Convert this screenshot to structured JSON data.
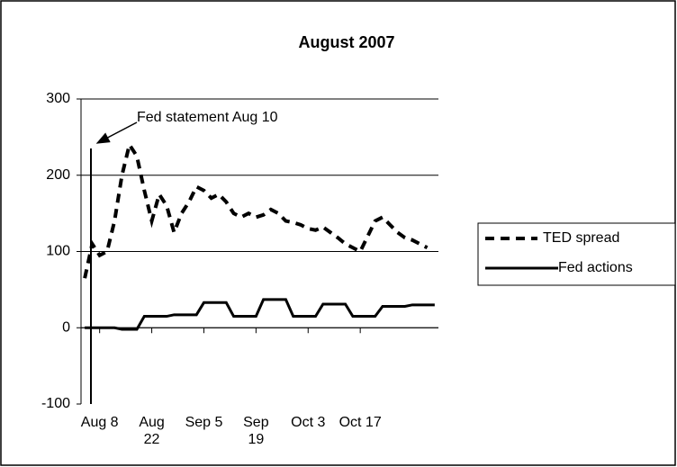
{
  "chart_data": {
    "type": "line",
    "title": "August 2007",
    "categories": [
      null,
      null,
      "Aug 8",
      null,
      null,
      null,
      null,
      null,
      null,
      "Aug 22",
      null,
      null,
      null,
      null,
      null,
      null,
      "Sep 5",
      null,
      null,
      null,
      null,
      null,
      null,
      "Sep 19",
      null,
      null,
      null,
      null,
      null,
      null,
      "Oct 3",
      null,
      null,
      null,
      null,
      null,
      null,
      "Oct 17",
      null,
      null,
      null,
      null,
      null,
      null,
      null,
      null,
      null,
      null
    ],
    "series": [
      {
        "name": "TED spread",
        "color": "#000000",
        "dashed": true,
        "values": [
          65,
          110,
          95,
          100,
          140,
          200,
          240,
          225,
          180,
          140,
          175,
          160,
          125,
          150,
          165,
          185,
          180,
          170,
          175,
          165,
          150,
          145,
          150,
          145,
          148,
          155,
          150,
          140,
          138,
          135,
          130,
          128,
          132,
          125,
          118,
          110,
          105,
          100,
          120,
          140,
          145,
          135,
          125,
          118,
          115,
          110,
          105,
          null
        ]
      },
      {
        "name": "Fed actions",
        "color": "#000000",
        "dashed": false,
        "values": [
          0,
          0,
          0,
          0,
          0,
          -2,
          -2,
          -2,
          15,
          15,
          15,
          15,
          17,
          17,
          17,
          17,
          33,
          33,
          33,
          33,
          15,
          15,
          15,
          15,
          37,
          37,
          37,
          37,
          15,
          15,
          15,
          15,
          31,
          31,
          31,
          31,
          15,
          15,
          15,
          15,
          28,
          28,
          28,
          28,
          30,
          30,
          30,
          30
        ]
      }
    ],
    "ylim": [
      -100,
      300
    ],
    "yticks": [
      -100,
      0,
      100,
      200,
      300
    ],
    "grid": true,
    "legend": "right",
    "annotation": "Fed statement Aug 10"
  }
}
